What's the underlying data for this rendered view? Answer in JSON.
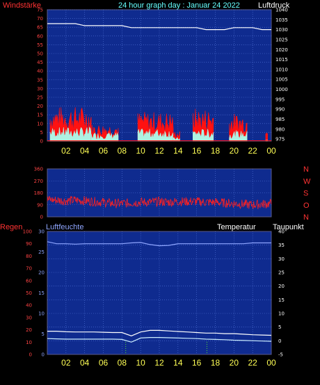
{
  "header": {
    "left_label": "Windstärke",
    "title": "24 hour graph day : Januar 24 2022",
    "right_label": "Luftdruck"
  },
  "colors": {
    "plot_bg": "#0f2b8f",
    "frame": "#5a5a8a",
    "grid": "#5577dd",
    "wind_red": "#ff1111",
    "wind_cyan": "#aaffee",
    "pressure_white": "#ffffff",
    "dir_red": "#ff2020",
    "humidity": "#8fa6ff",
    "temperature": "#ffffff",
    "dewpoint": "#cceeff",
    "rain_mark": "#55dd33",
    "x_tick": "#ffff55",
    "left_tick": "#ff4444",
    "title_color": "#66ffff"
  },
  "x_tick_labels": [
    "02",
    "04",
    "06",
    "08",
    "10",
    "12",
    "14",
    "16",
    "18",
    "20",
    "22",
    "00"
  ],
  "chart_data": [
    {
      "type": "line",
      "name": "wind_pressure",
      "left_axis": {
        "label": "Windstärke",
        "ticks": [
          0,
          5,
          10,
          15,
          20,
          25,
          30,
          35,
          40,
          45,
          50,
          55,
          60,
          65,
          70,
          75
        ],
        "range": [
          0,
          75
        ]
      },
      "right_axis": {
        "label": "Luftdruck",
        "ticks": [
          975,
          980,
          985,
          990,
          995,
          1000,
          1005,
          1010,
          1015,
          1020,
          1025,
          1030,
          1035,
          1040
        ],
        "range": [
          974,
          1040
        ]
      },
      "series": [
        {
          "name": "Luftdruck",
          "axis": "right",
          "values": [
            1033,
            1033,
            1033,
            1033,
            1032,
            1032,
            1032,
            1032,
            1032,
            1031,
            1031,
            1031,
            1031,
            1031,
            1031,
            1031,
            1031,
            1030,
            1030,
            1030,
            1031,
            1031,
            1031,
            1030,
            1030
          ]
        }
      ],
      "wind_bursts": [
        {
          "from_hour": 0.3,
          "to_hour": 4.7,
          "gust_max": 20,
          "avg_max": 8
        },
        {
          "from_hour": 4.7,
          "to_hour": 7.6,
          "gust_max": 10,
          "avg_max": 5
        },
        {
          "from_hour": 9.7,
          "to_hour": 13.5,
          "gust_max": 17,
          "avg_max": 7
        },
        {
          "from_hour": 13.5,
          "to_hour": 14.2,
          "gust_max": 6,
          "avg_max": 2
        },
        {
          "from_hour": 15.6,
          "to_hour": 17.8,
          "gust_max": 19,
          "avg_max": 7
        },
        {
          "from_hour": 19.5,
          "to_hour": 21.4,
          "gust_max": 16,
          "avg_max": 6
        },
        {
          "from_hour": 23.4,
          "to_hour": 23.6,
          "gust_max": 13,
          "avg_max": 1
        }
      ]
    },
    {
      "type": "line",
      "name": "wind_direction",
      "left_axis": {
        "ticks": [
          0,
          90,
          180,
          270,
          360
        ],
        "range": [
          0,
          360
        ]
      },
      "right_axis": {
        "ticks": [
          "N",
          "W",
          "S",
          "O",
          "N"
        ]
      },
      "series": [
        {
          "name": "direction",
          "values": [
            130,
            125,
            120,
            125,
            120,
            115,
            110,
            100,
            100,
            105,
            110,
            110,
            115,
            110,
            115,
            115,
            115,
            110,
            110,
            105,
            100,
            95,
            90,
            95,
            100
          ]
        }
      ]
    },
    {
      "type": "line",
      "name": "temp_humidity",
      "labels": {
        "left_outer": "Regen",
        "left_inner": "Luftfeuchte",
        "temp": "Temperatur",
        "dew": "Taupunkt"
      },
      "rain_axis": {
        "ticks": [
          0,
          10,
          20,
          30,
          40,
          50,
          60,
          70,
          80,
          90,
          100
        ]
      },
      "humidity_axis": {
        "ticks": [
          0,
          5,
          10,
          15,
          20,
          25,
          30
        ]
      },
      "temp_axis": {
        "ticks": [
          -5,
          0,
          5,
          10,
          15,
          20,
          25,
          30,
          35,
          40
        ],
        "range": [
          -5,
          40
        ]
      },
      "x": [
        0,
        1,
        2,
        3,
        4,
        5,
        6,
        7,
        8,
        9,
        10,
        11,
        12,
        13,
        14,
        15,
        16,
        17,
        18,
        19,
        20,
        21,
        22,
        23,
        24
      ],
      "series": [
        {
          "name": "Luftfeuchte",
          "axis": "humidity",
          "values": [
            27.5,
            27,
            27,
            26.9,
            27,
            27,
            27,
            27,
            27,
            27.2,
            27.3,
            26.8,
            26.5,
            26.6,
            27,
            27,
            27,
            27,
            27,
            27,
            27,
            27,
            27.2,
            27.2,
            27.2
          ]
        },
        {
          "name": "Temperatur",
          "axis": "temp",
          "values": [
            3.5,
            3.5,
            3.3,
            3.2,
            3.2,
            3.2,
            3.1,
            3,
            3,
            1.8,
            3.2,
            3.8,
            3.8,
            3.6,
            3.4,
            3.2,
            3,
            2.8,
            2.8,
            2.6,
            2.6,
            2.4,
            2.2,
            2.1,
            2
          ]
        },
        {
          "name": "Taupunkt",
          "axis": "temp",
          "values": [
            0.8,
            0.7,
            0.6,
            0.6,
            0.6,
            0.6,
            0.6,
            0.6,
            0.5,
            -0.5,
            1,
            1.2,
            1.2,
            1.1,
            1,
            0.9,
            0.8,
            0.6,
            0.5,
            0.4,
            0.2,
            0.1,
            0,
            -0.1,
            -0.2
          ]
        }
      ],
      "rain_marks_hours": [
        8.4,
        17.1
      ]
    }
  ]
}
